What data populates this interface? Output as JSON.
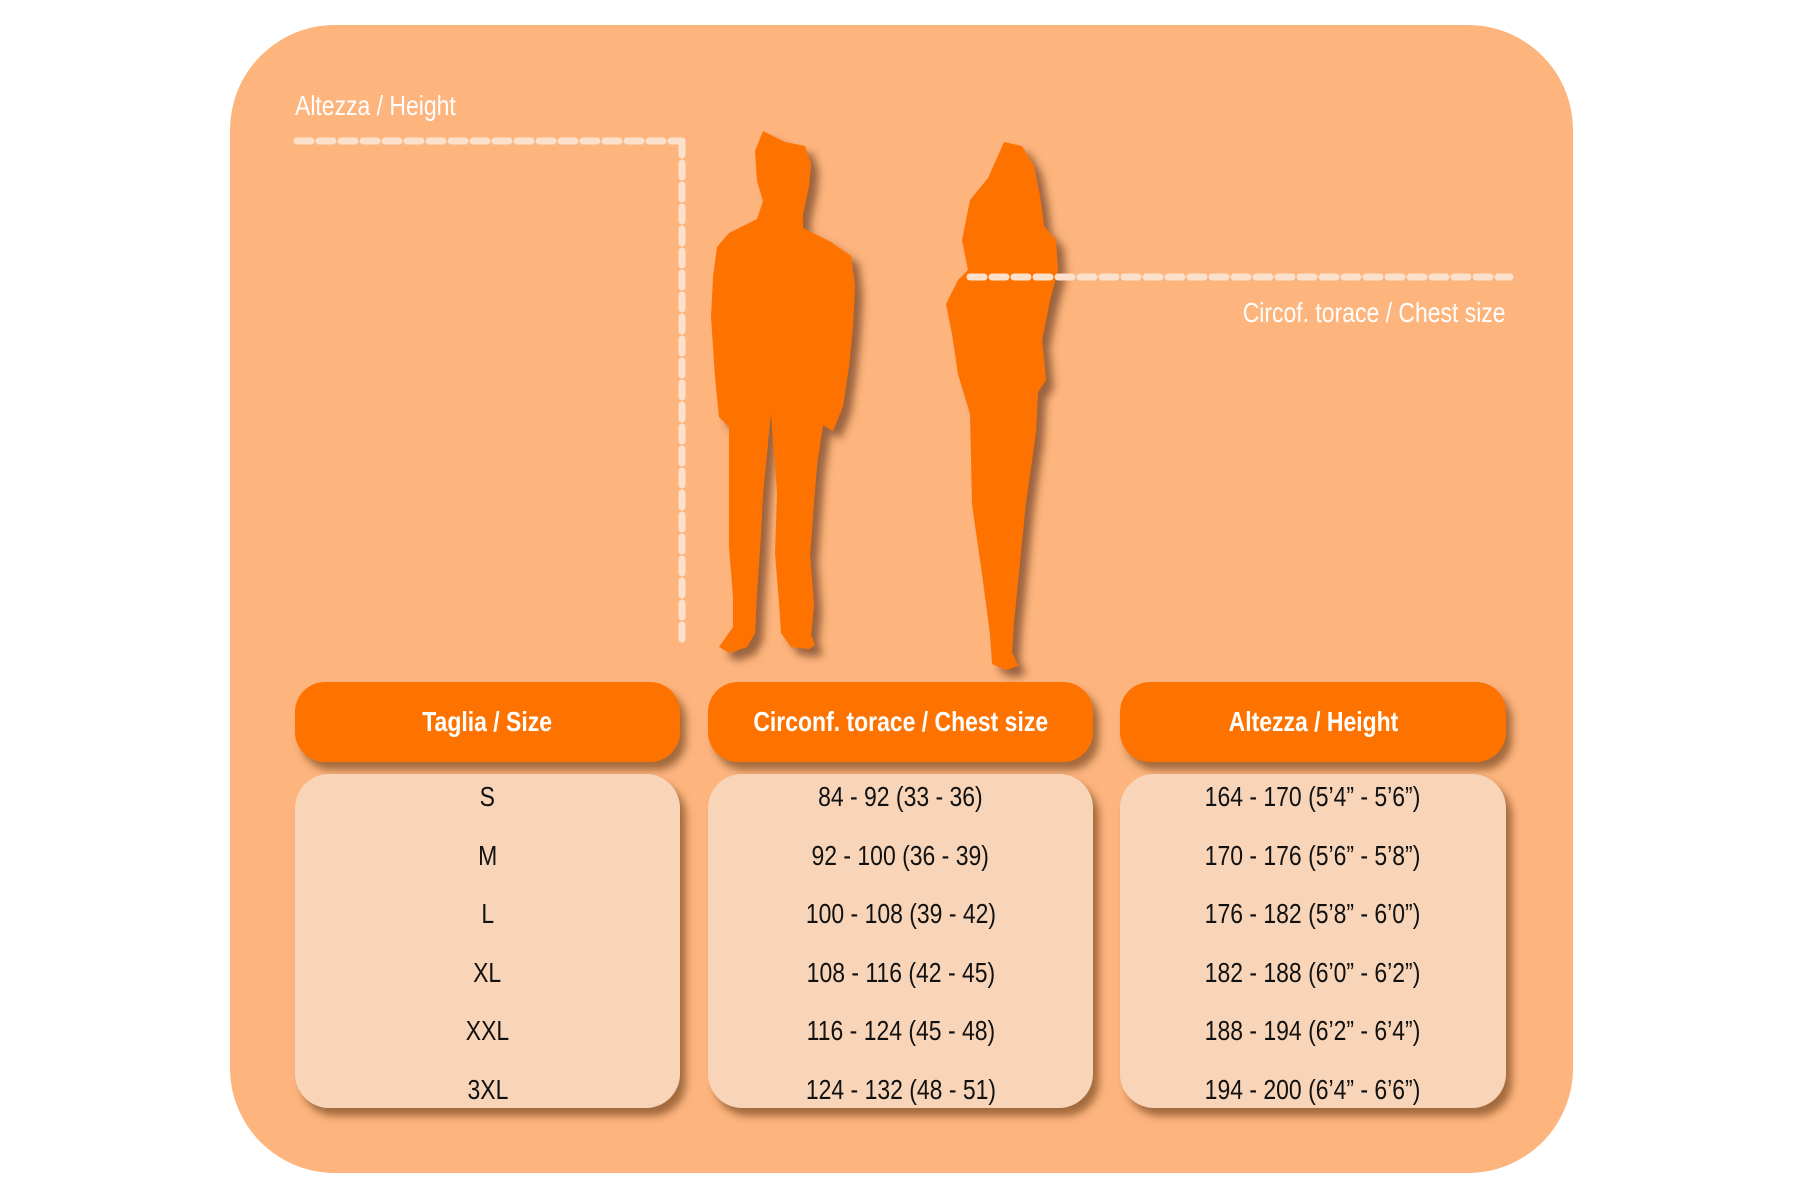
{
  "labels": {
    "height": "Altezza / Height",
    "chest": "Circof. torace / Chest size"
  },
  "table": {
    "headers": [
      "Taglia / Size",
      "Circonf. torace / Chest size",
      "Altezza / Height"
    ],
    "sizes": [
      "S",
      "M",
      "L",
      "XL",
      "XXL",
      "3XL"
    ],
    "chest": [
      "84 - 92 (33 - 36)",
      "92 - 100 (36 - 39)",
      "100 - 108 (39 - 42)",
      "108 - 116 (42 - 45)",
      "116 - 124 (45 - 48)",
      "124 - 132 (48 - 51)"
    ],
    "height": [
      "164 - 170 (5’4” - 5’6”)",
      "170 - 176 (5’6” - 5’8”)",
      "176 - 182 (5’8” - 6’0”)",
      "182 - 188 (6’0” - 6’2”)",
      "188 - 194 (6’2” - 6’4”)",
      "194 - 200 (6’4” - 6’6”)"
    ]
  },
  "colors": {
    "panel": "#fdb47d",
    "accent": "#fe7300",
    "cell": "#f8d5b8"
  }
}
